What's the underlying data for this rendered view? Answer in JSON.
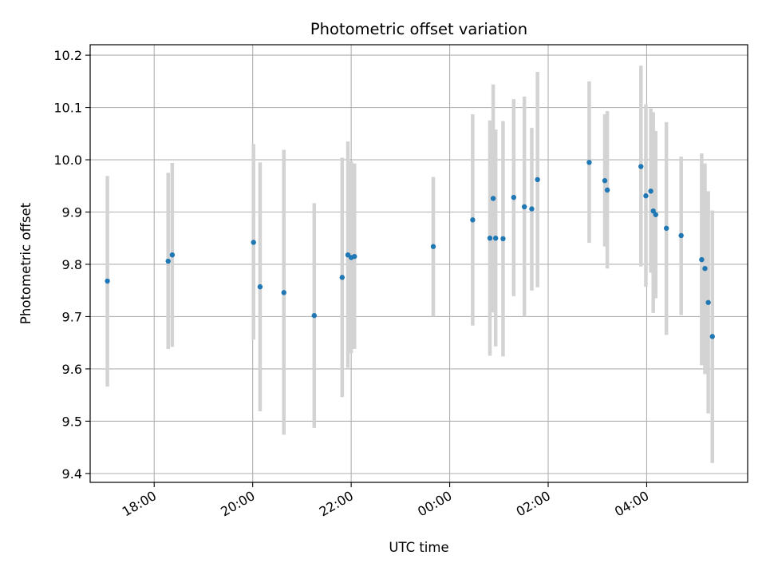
{
  "chart_data": {
    "type": "scatter",
    "title": "Photometric offset variation",
    "xlabel": "UTC time",
    "ylabel": "Photometric offset",
    "grid": true,
    "legend": "none",
    "xlim": [
      "16:42",
      "06:03"
    ],
    "ylim": [
      9.383,
      10.22
    ],
    "xticks": [
      "18:00",
      "20:00",
      "22:00",
      "00:00",
      "02:00",
      "04:00"
    ],
    "yticks": [
      "9.4",
      "9.5",
      "9.6",
      "9.7",
      "9.8",
      "9.9",
      "10.0",
      "10.1",
      "10.2"
    ],
    "colors": {
      "point": "#1f77b4",
      "errorbar": "#d3d3d3",
      "grid": "#b0b0b0"
    },
    "points": [
      {
        "x": "17:03",
        "y": 9.768,
        "ylow": 9.566,
        "yhigh": 9.969
      },
      {
        "x": "18:17",
        "y": 9.806,
        "ylow": 9.638,
        "yhigh": 9.975
      },
      {
        "x": "18:22",
        "y": 9.818,
        "ylow": 9.642,
        "yhigh": 9.994
      },
      {
        "x": "20:01",
        "y": 9.842,
        "ylow": 9.656,
        "yhigh": 10.03
      },
      {
        "x": "20:09",
        "y": 9.757,
        "ylow": 9.519,
        "yhigh": 9.995
      },
      {
        "x": "20:38",
        "y": 9.746,
        "ylow": 9.474,
        "yhigh": 10.019
      },
      {
        "x": "21:15",
        "y": 9.702,
        "ylow": 9.487,
        "yhigh": 9.917
      },
      {
        "x": "21:49",
        "y": 9.775,
        "ylow": 9.546,
        "yhigh": 10.004
      },
      {
        "x": "21:56",
        "y": 9.818,
        "ylow": 9.602,
        "yhigh": 10.035
      },
      {
        "x": "22:00",
        "y": 9.813,
        "ylow": 9.63,
        "yhigh": 9.997
      },
      {
        "x": "22:04",
        "y": 9.815,
        "ylow": 9.638,
        "yhigh": 9.993
      },
      {
        "x": "23:40",
        "y": 9.834,
        "ylow": 9.7,
        "yhigh": 9.967
      },
      {
        "x": "00:28",
        "y": 9.885,
        "ylow": 9.683,
        "yhigh": 10.087
      },
      {
        "x": "00:49",
        "y": 9.85,
        "ylow": 9.625,
        "yhigh": 10.075
      },
      {
        "x": "00:53",
        "y": 9.926,
        "ylow": 9.708,
        "yhigh": 10.144
      },
      {
        "x": "00:56",
        "y": 9.85,
        "ylow": 9.643,
        "yhigh": 10.058
      },
      {
        "x": "01:05",
        "y": 9.849,
        "ylow": 9.624,
        "yhigh": 10.074
      },
      {
        "x": "01:18",
        "y": 9.928,
        "ylow": 9.739,
        "yhigh": 10.116
      },
      {
        "x": "01:31",
        "y": 9.91,
        "ylow": 9.7,
        "yhigh": 10.121
      },
      {
        "x": "01:40",
        "y": 9.906,
        "ylow": 9.75,
        "yhigh": 10.061
      },
      {
        "x": "01:47",
        "y": 9.962,
        "ylow": 9.756,
        "yhigh": 10.168
      },
      {
        "x": "02:50",
        "y": 9.995,
        "ylow": 9.841,
        "yhigh": 10.15
      },
      {
        "x": "03:09",
        "y": 9.96,
        "ylow": 9.834,
        "yhigh": 10.087
      },
      {
        "x": "03:12",
        "y": 9.942,
        "ylow": 9.792,
        "yhigh": 10.093
      },
      {
        "x": "03:53",
        "y": 9.987,
        "ylow": 9.796,
        "yhigh": 10.18
      },
      {
        "x": "03:59",
        "y": 9.931,
        "ylow": 9.757,
        "yhigh": 10.106
      },
      {
        "x": "04:05",
        "y": 9.94,
        "ylow": 9.784,
        "yhigh": 10.098
      },
      {
        "x": "04:08",
        "y": 9.902,
        "ylow": 9.707,
        "yhigh": 10.091
      },
      {
        "x": "04:11",
        "y": 9.895,
        "ylow": 9.735,
        "yhigh": 10.055
      },
      {
        "x": "04:24",
        "y": 9.869,
        "ylow": 9.665,
        "yhigh": 10.072
      },
      {
        "x": "04:42",
        "y": 9.855,
        "ylow": 9.703,
        "yhigh": 10.006
      },
      {
        "x": "05:07",
        "y": 9.809,
        "ylow": 9.607,
        "yhigh": 10.012
      },
      {
        "x": "05:11",
        "y": 9.792,
        "ylow": 9.59,
        "yhigh": 9.993
      },
      {
        "x": "05:15",
        "y": 9.727,
        "ylow": 9.515,
        "yhigh": 9.94
      },
      {
        "x": "05:20",
        "y": 9.662,
        "ylow": 9.42,
        "yhigh": 9.903
      }
    ]
  }
}
